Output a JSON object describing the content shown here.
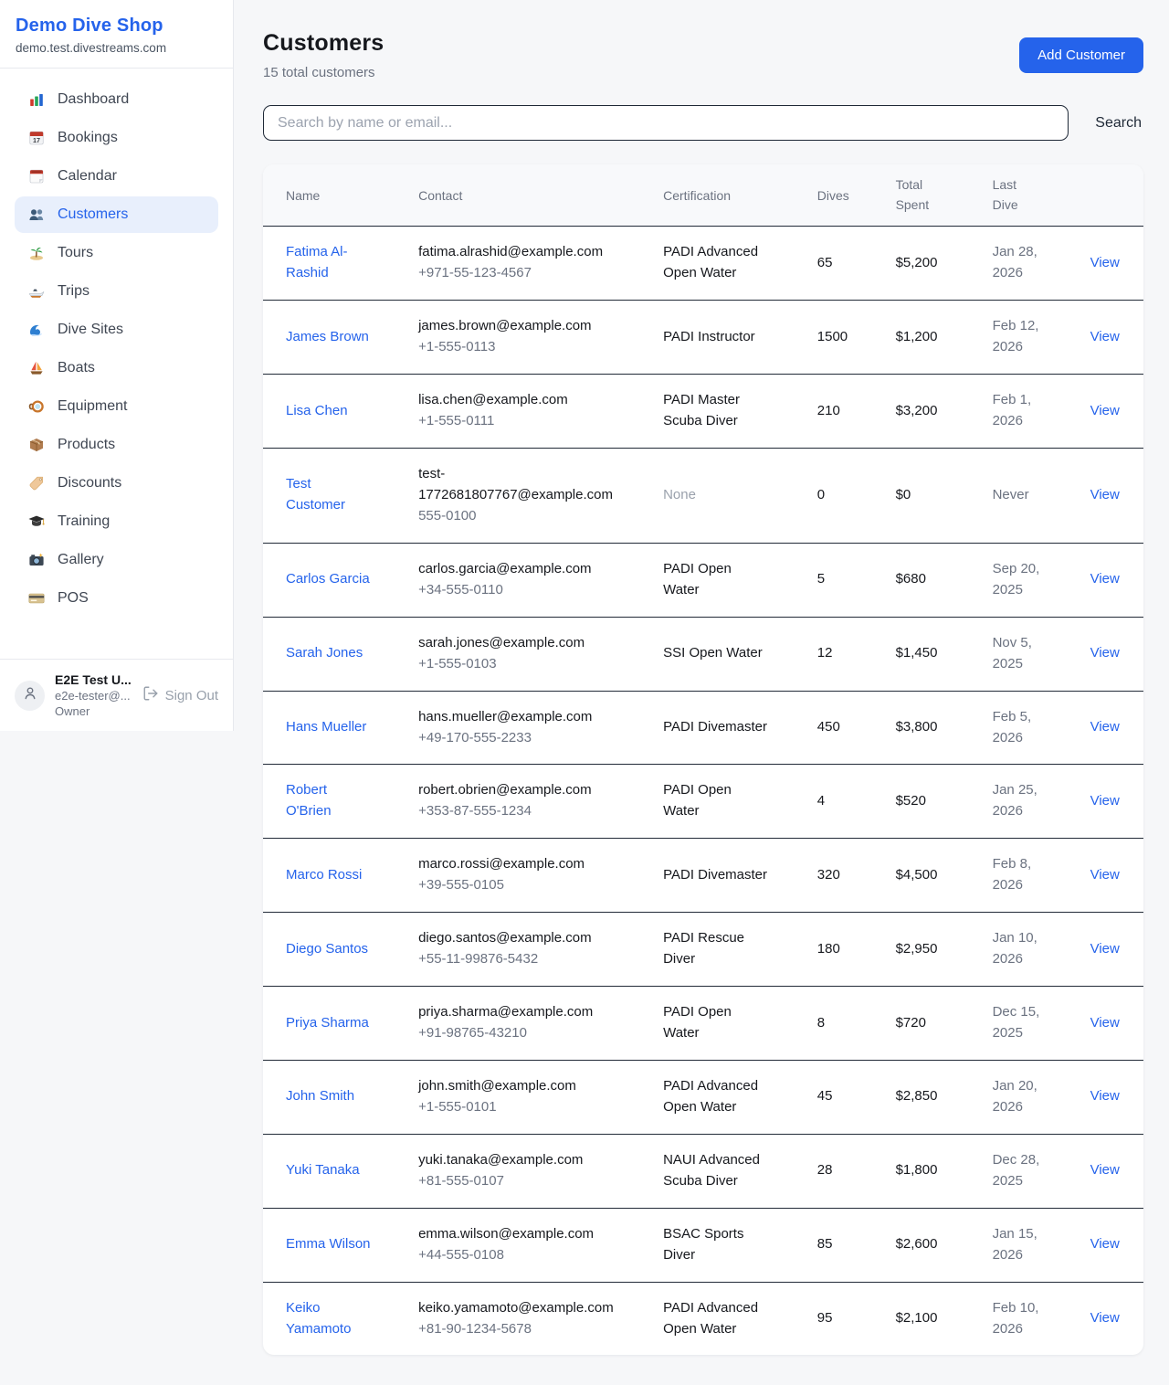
{
  "sidebar": {
    "brand": {
      "name": "Demo Dive Shop",
      "domain": "demo.test.divestreams.com"
    },
    "items": [
      {
        "label": "Dashboard",
        "icon": "bar-chart",
        "active": false
      },
      {
        "label": "Bookings",
        "icon": "calendar-date",
        "active": false
      },
      {
        "label": "Calendar",
        "icon": "calendar",
        "active": false
      },
      {
        "label": "Customers",
        "icon": "people",
        "active": true
      },
      {
        "label": "Tours",
        "icon": "island",
        "active": false
      },
      {
        "label": "Trips",
        "icon": "speedboat",
        "active": false
      },
      {
        "label": "Dive Sites",
        "icon": "wave",
        "active": false
      },
      {
        "label": "Boats",
        "icon": "sailboat",
        "active": false
      },
      {
        "label": "Equipment",
        "icon": "diving-mask",
        "active": false
      },
      {
        "label": "Products",
        "icon": "package",
        "active": false
      },
      {
        "label": "Discounts",
        "icon": "tag",
        "active": false
      },
      {
        "label": "Training",
        "icon": "graduation-cap",
        "active": false
      },
      {
        "label": "Gallery",
        "icon": "camera",
        "active": false
      },
      {
        "label": "POS",
        "icon": "credit-card",
        "active": false
      }
    ],
    "user": {
      "name": "E2E Test U...",
      "email": "e2e-tester@...",
      "role": "Owner",
      "sign_out_label": "Sign Out"
    }
  },
  "header": {
    "title": "Customers",
    "subtitle": "15 total customers",
    "add_button_label": "Add Customer"
  },
  "search": {
    "placeholder": "Search by name or email...",
    "button_label": "Search"
  },
  "table": {
    "columns": [
      "Name",
      "Contact",
      "Certification",
      "Dives",
      "Total Spent",
      "Last Dive",
      ""
    ],
    "view_label": "View",
    "rows": [
      {
        "name": "Fatima Al-Rashid",
        "email": "fatima.alrashid@example.com",
        "phone": "+971-55-123-4567",
        "certification": "PADI Advanced Open Water",
        "dives": "65",
        "total_spent": "$5,200",
        "last_dive": "Jan 28, 2026"
      },
      {
        "name": "James Brown",
        "email": "james.brown@example.com",
        "phone": "+1-555-0113",
        "certification": "PADI Instructor",
        "dives": "1500",
        "total_spent": "$1,200",
        "last_dive": "Feb 12, 2026"
      },
      {
        "name": "Lisa Chen",
        "email": "lisa.chen@example.com",
        "phone": "+1-555-0111",
        "certification": "PADI Master Scuba Diver",
        "dives": "210",
        "total_spent": "$3,200",
        "last_dive": "Feb 1, 2026"
      },
      {
        "name": "Test Customer",
        "email": "test-1772681807767@example.com",
        "phone": "555-0100",
        "certification": "None",
        "dives": "0",
        "total_spent": "$0",
        "last_dive": "Never"
      },
      {
        "name": "Carlos Garcia",
        "email": "carlos.garcia@example.com",
        "phone": "+34-555-0110",
        "certification": "PADI Open Water",
        "dives": "5",
        "total_spent": "$680",
        "last_dive": "Sep 20, 2025"
      },
      {
        "name": "Sarah Jones",
        "email": "sarah.jones@example.com",
        "phone": "+1-555-0103",
        "certification": "SSI Open Water",
        "dives": "12",
        "total_spent": "$1,450",
        "last_dive": "Nov 5, 2025"
      },
      {
        "name": "Hans Mueller",
        "email": "hans.mueller@example.com",
        "phone": "+49-170-555-2233",
        "certification": "PADI Divemaster",
        "dives": "450",
        "total_spent": "$3,800",
        "last_dive": "Feb 5, 2026"
      },
      {
        "name": "Robert O'Brien",
        "email": "robert.obrien@example.com",
        "phone": "+353-87-555-1234",
        "certification": "PADI Open Water",
        "dives": "4",
        "total_spent": "$520",
        "last_dive": "Jan 25, 2026"
      },
      {
        "name": "Marco Rossi",
        "email": "marco.rossi@example.com",
        "phone": "+39-555-0105",
        "certification": "PADI Divemaster",
        "dives": "320",
        "total_spent": "$4,500",
        "last_dive": "Feb 8, 2026"
      },
      {
        "name": "Diego Santos",
        "email": "diego.santos@example.com",
        "phone": "+55-11-99876-5432",
        "certification": "PADI Rescue Diver",
        "dives": "180",
        "total_spent": "$2,950",
        "last_dive": "Jan 10, 2026"
      },
      {
        "name": "Priya Sharma",
        "email": "priya.sharma@example.com",
        "phone": "+91-98765-43210",
        "certification": "PADI Open Water",
        "dives": "8",
        "total_spent": "$720",
        "last_dive": "Dec 15, 2025"
      },
      {
        "name": "John Smith",
        "email": "john.smith@example.com",
        "phone": "+1-555-0101",
        "certification": "PADI Advanced Open Water",
        "dives": "45",
        "total_spent": "$2,850",
        "last_dive": "Jan 20, 2026"
      },
      {
        "name": "Yuki Tanaka",
        "email": "yuki.tanaka@example.com",
        "phone": "+81-555-0107",
        "certification": "NAUI Advanced Scuba Diver",
        "dives": "28",
        "total_spent": "$1,800",
        "last_dive": "Dec 28, 2025"
      },
      {
        "name": "Emma Wilson",
        "email": "emma.wilson@example.com",
        "phone": "+44-555-0108",
        "certification": "BSAC Sports Diver",
        "dives": "85",
        "total_spent": "$2,600",
        "last_dive": "Jan 15, 2026"
      },
      {
        "name": "Keiko Yamamoto",
        "email": "keiko.yamamoto@example.com",
        "phone": "+81-90-1234-5678",
        "certification": "PADI Advanced Open Water",
        "dives": "95",
        "total_spent": "$2,100",
        "last_dive": "Feb 10, 2026"
      }
    ]
  },
  "colors": {
    "accent": "#2563eb",
    "active_item_bg": "#e8effc",
    "page_bg": "#f6f7f9",
    "row_border": "#222b38",
    "muted_text": "#6b7280"
  }
}
